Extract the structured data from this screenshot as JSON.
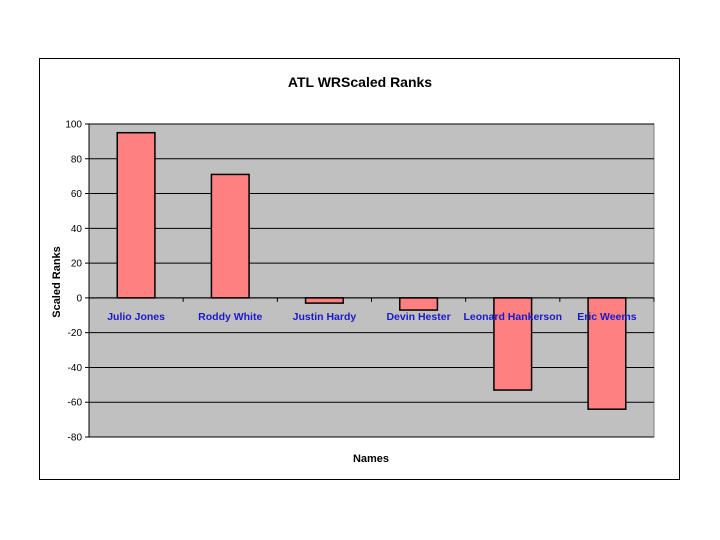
{
  "chart_data": {
    "type": "bar",
    "title": "ATL WRScaled Ranks",
    "xlabel": "Names",
    "ylabel": "Scaled Ranks",
    "categories": [
      "Julio Jones",
      "Roddy White",
      "Justin Hardy",
      "Devin Hester",
      "Leonard Hankerson",
      "Eric Weems"
    ],
    "values": [
      95,
      71,
      -3,
      -7,
      -53,
      -64
    ],
    "ylim": [
      -80,
      100
    ],
    "yticks": [
      "100",
      "80",
      "60",
      "40",
      "20",
      "0",
      "-20",
      "-40",
      "-60",
      "-80"
    ],
    "grid": true,
    "legend": "none",
    "colors": {
      "bar_fill": "#ff8080",
      "bar_stroke": "#000000",
      "plot_bg": "#c0c0c0",
      "category_label": "#1a1acc"
    }
  }
}
